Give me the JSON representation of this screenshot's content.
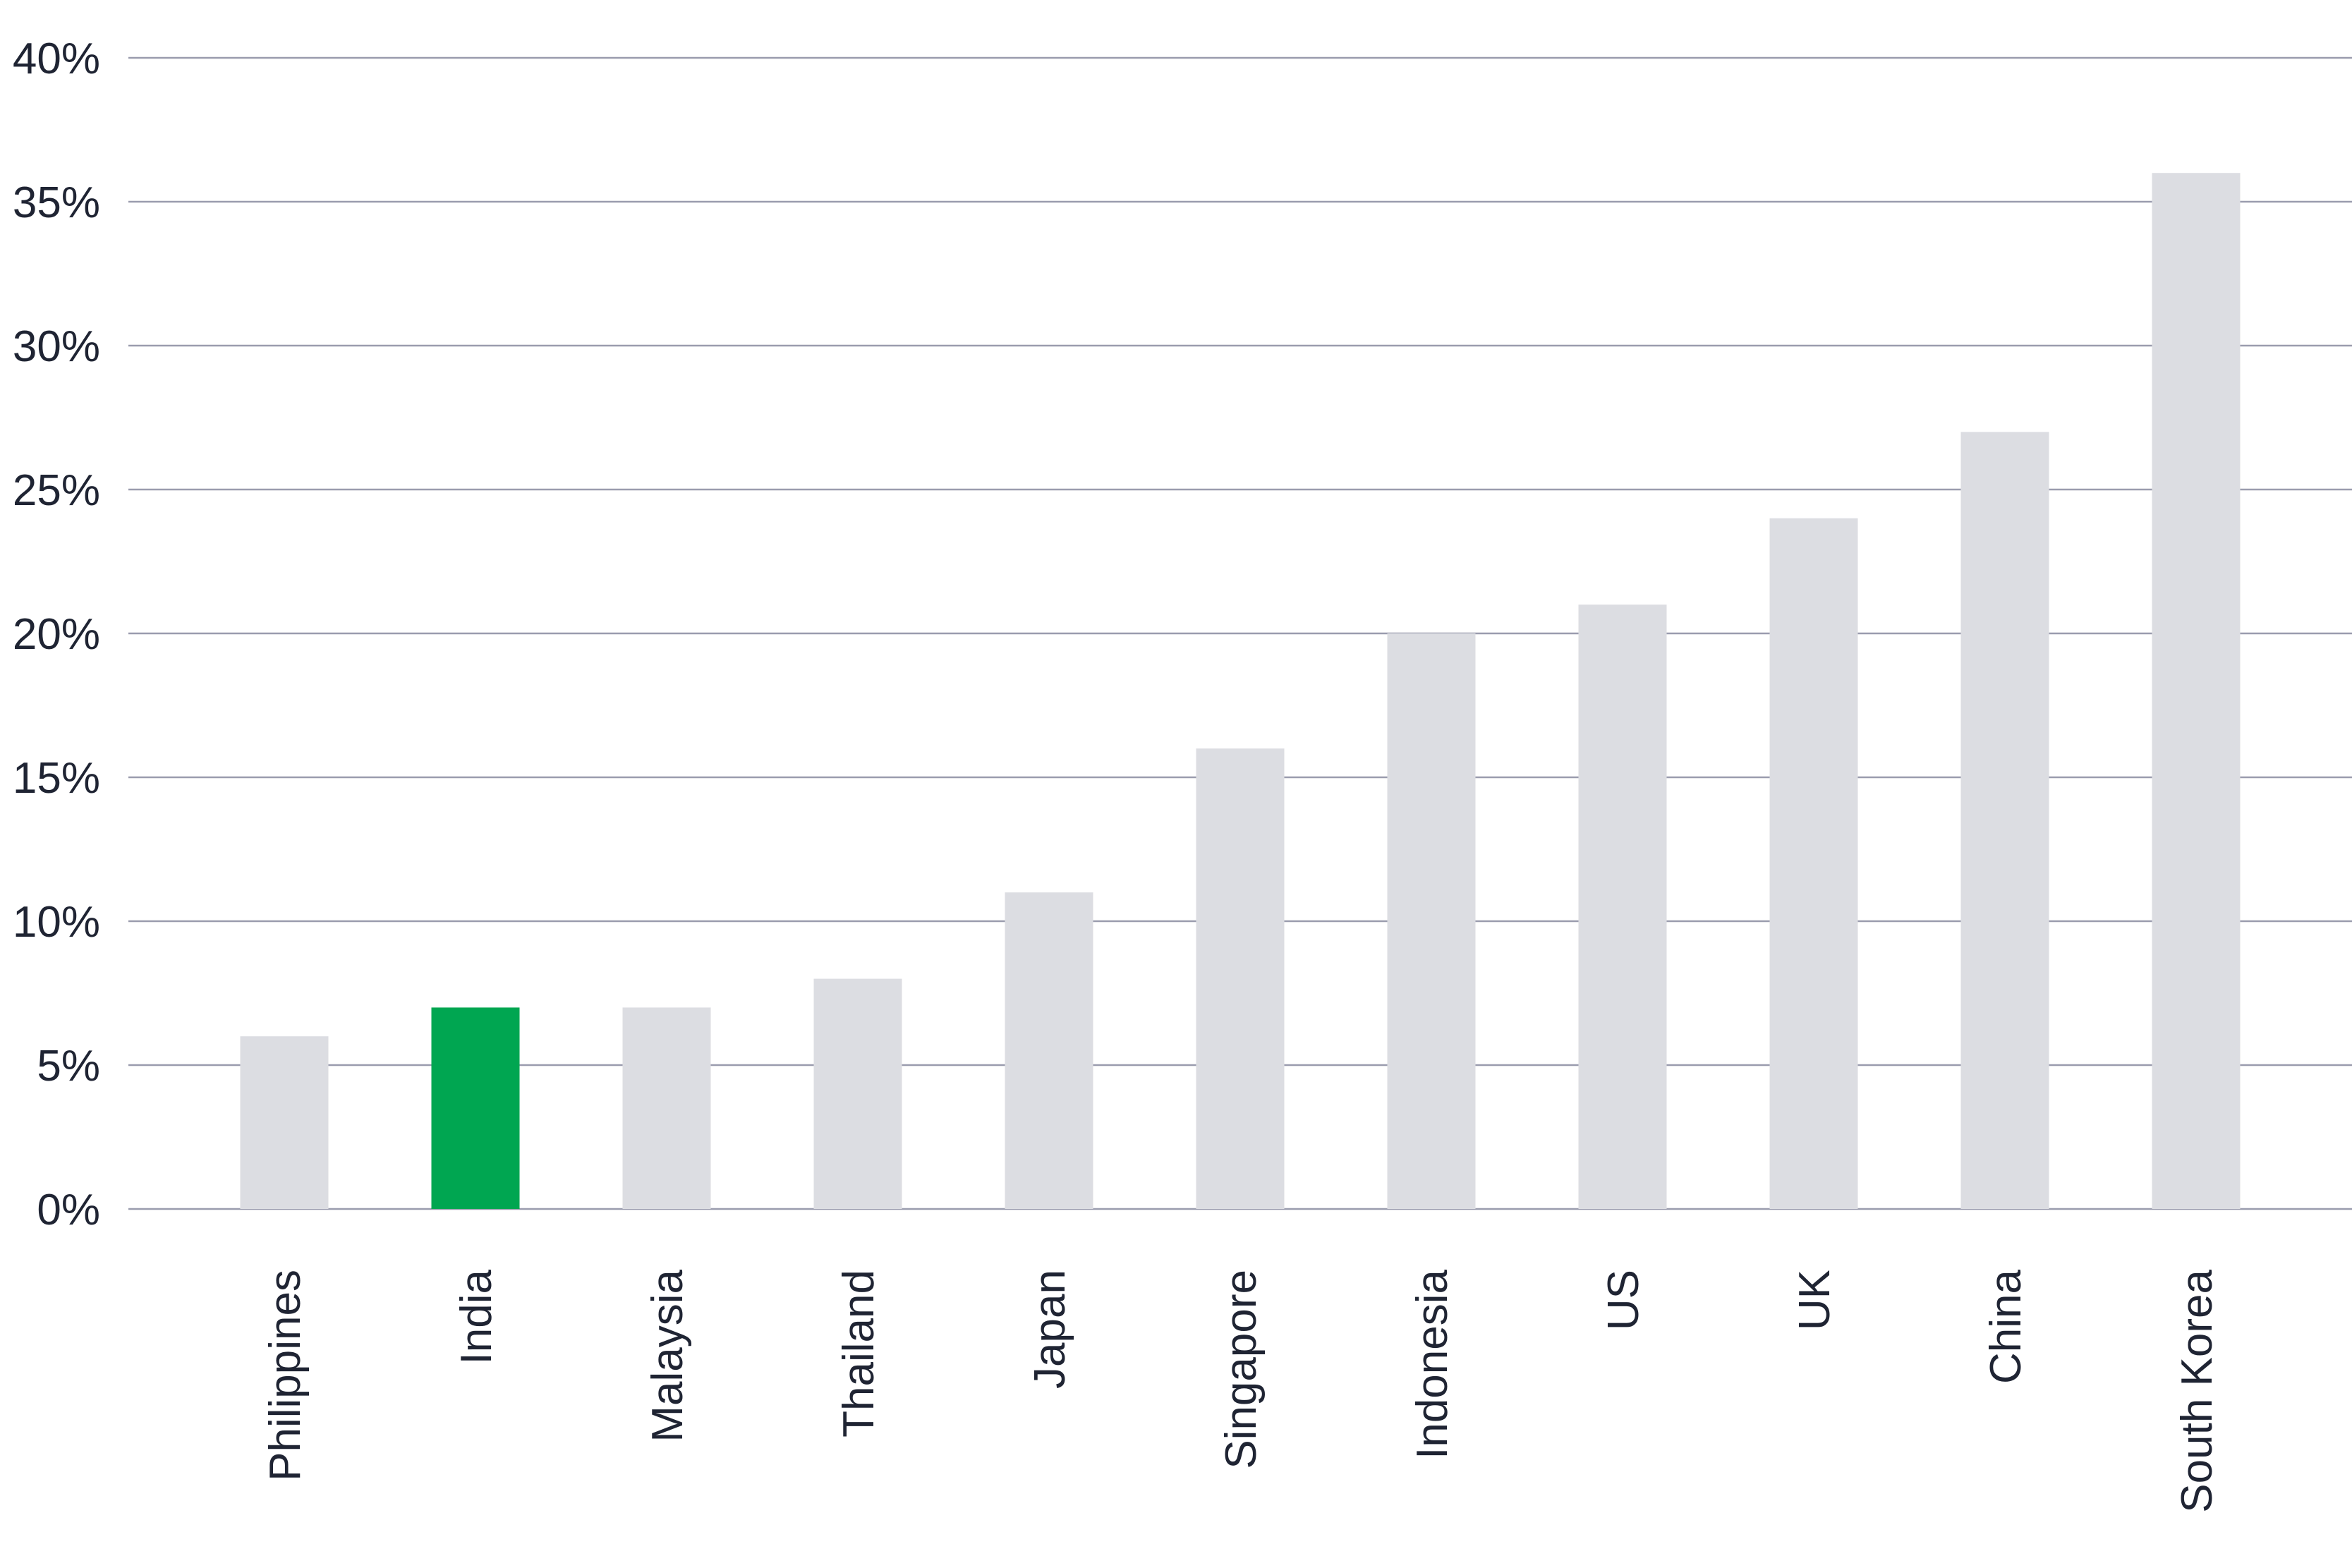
{
  "chart_data": {
    "type": "bar",
    "title": "",
    "xlabel": "",
    "ylabel": "",
    "categories": [
      "Philippines",
      "India",
      "Malaysia",
      "Thailand",
      "Japan",
      "Singapore",
      "Indonesia",
      "US",
      "UK",
      "China",
      "South Korea"
    ],
    "values": [
      6,
      7,
      7,
      8,
      11,
      16,
      20,
      21,
      24,
      27,
      36
    ],
    "ylim": [
      0,
      40
    ],
    "yticks": [
      0,
      5,
      10,
      15,
      20,
      25,
      30,
      35,
      40
    ],
    "ytick_labels": [
      "0%",
      "5%",
      "10%",
      "15%",
      "20%",
      "25%",
      "30%",
      "35%",
      "40%"
    ],
    "grid": true,
    "legend": "none",
    "colors": {
      "default": "#dcdde2",
      "highlight": "#00a651",
      "grid": "#9a9cae",
      "text": "#1f2433"
    },
    "highlight_category": "India"
  }
}
